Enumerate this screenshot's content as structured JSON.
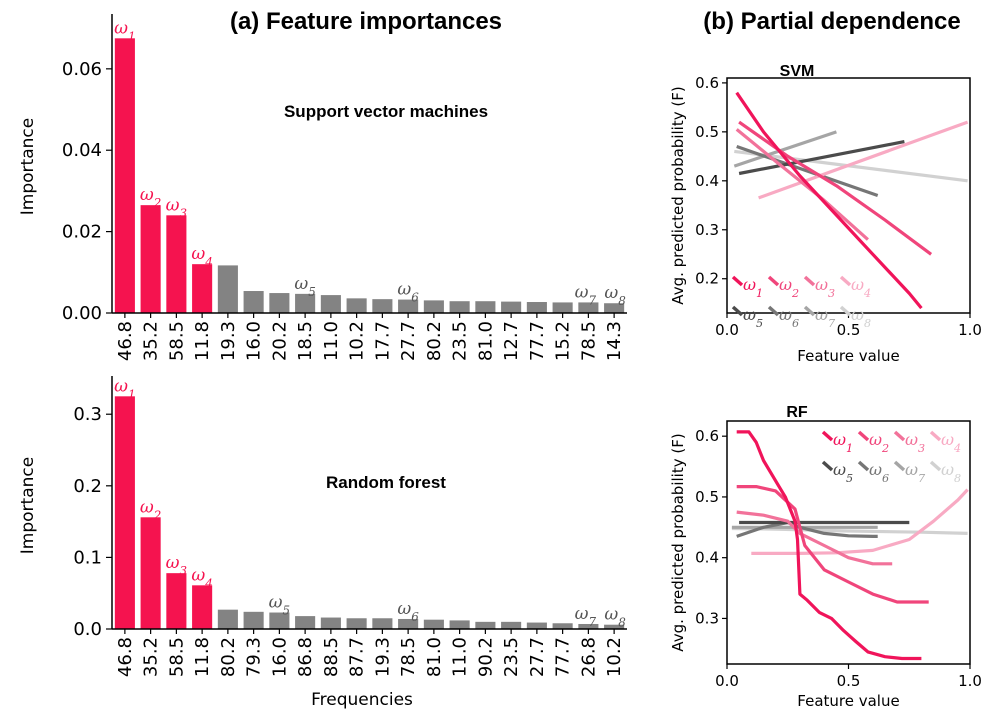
{
  "titles": {
    "left": "(a) Feature importances",
    "right": "(b) Partial dependence"
  },
  "colors": {
    "highlight": "#f5134f",
    "other": "#838383",
    "pd_top": [
      "#f0145a",
      "#f0457b",
      "#f2729a",
      "#f8aac3"
    ],
    "pd_other": [
      "#4b4b4b",
      "#767676",
      "#a5a5a5",
      "#d1d1d1"
    ]
  },
  "chart_data": [
    {
      "type": "bar",
      "panel": "importances-svm",
      "inner_label": "Support vector machines",
      "ylabel": "Importance",
      "xlabel": "",
      "ylim": [
        0,
        0.072
      ],
      "yticks": [
        0.0,
        0.02,
        0.04,
        0.06
      ],
      "ytick_labels": [
        "0.00",
        "0.02",
        "0.04",
        "0.06"
      ],
      "categories": [
        "46.8",
        "35.2",
        "58.5",
        "11.8",
        "19.3",
        "16.0",
        "20.2",
        "18.5",
        "11.0",
        "10.2",
        "17.7",
        "27.7",
        "80.2",
        "23.5",
        "81.0",
        "12.7",
        "77.7",
        "15.2",
        "78.5",
        "14.3"
      ],
      "values": [
        0.0675,
        0.0265,
        0.024,
        0.012,
        0.0117,
        0.0054,
        0.0049,
        0.0047,
        0.0044,
        0.0036,
        0.0034,
        0.0033,
        0.0031,
        0.0029,
        0.0029,
        0.0028,
        0.0027,
        0.0026,
        0.0026,
        0.0024
      ],
      "highlighted": [
        0,
        1,
        2,
        3
      ],
      "annotations": [
        {
          "index": 0,
          "label": "ω",
          "sub": "1",
          "kind": "top"
        },
        {
          "index": 1,
          "label": "ω",
          "sub": "2",
          "kind": "top"
        },
        {
          "index": 2,
          "label": "ω",
          "sub": "3",
          "kind": "top"
        },
        {
          "index": 3,
          "label": "ω",
          "sub": "4",
          "kind": "top"
        },
        {
          "index": 7,
          "label": "ω",
          "sub": "5",
          "kind": "other"
        },
        {
          "index": 11,
          "label": "ω",
          "sub": "6",
          "kind": "other"
        },
        {
          "index": 18,
          "label": "ω",
          "sub": "7",
          "kind": "other"
        },
        {
          "index": 19,
          "label": "ω",
          "sub": "8",
          "kind": "other"
        }
      ]
    },
    {
      "type": "bar",
      "panel": "importances-rf",
      "inner_label": "Random forest",
      "ylabel": "Importance",
      "xlabel": "Frequencies",
      "ylim": [
        0,
        0.345
      ],
      "yticks": [
        0.0,
        0.1,
        0.2,
        0.3
      ],
      "ytick_labels": [
        "0.0",
        "0.1",
        "0.2",
        "0.3"
      ],
      "categories": [
        "46.8",
        "35.2",
        "58.5",
        "11.8",
        "80.2",
        "79.3",
        "16.0",
        "86.8",
        "88.5",
        "87.7",
        "19.3",
        "78.5",
        "81.0",
        "11.0",
        "90.2",
        "23.5",
        "27.7",
        "77.7",
        "26.8",
        "10.2"
      ],
      "values": [
        0.325,
        0.156,
        0.078,
        0.061,
        0.027,
        0.024,
        0.023,
        0.018,
        0.016,
        0.015,
        0.015,
        0.014,
        0.013,
        0.012,
        0.01,
        0.01,
        0.009,
        0.008,
        0.007,
        0.006
      ],
      "highlighted": [
        0,
        1,
        2,
        3
      ],
      "annotations": [
        {
          "index": 0,
          "label": "ω",
          "sub": "1",
          "kind": "top"
        },
        {
          "index": 1,
          "label": "ω",
          "sub": "2",
          "kind": "top"
        },
        {
          "index": 2,
          "label": "ω",
          "sub": "3",
          "kind": "top"
        },
        {
          "index": 3,
          "label": "ω",
          "sub": "4",
          "kind": "top"
        },
        {
          "index": 6,
          "label": "ω",
          "sub": "5",
          "kind": "other"
        },
        {
          "index": 11,
          "label": "ω",
          "sub": "6",
          "kind": "other"
        },
        {
          "index": 18,
          "label": "ω",
          "sub": "7",
          "kind": "other"
        },
        {
          "index": 19,
          "label": "ω",
          "sub": "8",
          "kind": "other"
        }
      ]
    },
    {
      "type": "line",
      "panel": "pd-svm",
      "title": "SVM",
      "xlabel": "Feature value",
      "ylabel": "Avg. predicted probability (F)",
      "xlim": [
        0,
        1.0
      ],
      "ylim": [
        0.13,
        0.61
      ],
      "xticks": [
        0.0,
        0.5,
        1.0
      ],
      "xtick_labels": [
        "0.0",
        "0.5",
        "1.0"
      ],
      "yticks": [
        0.2,
        0.3,
        0.4,
        0.5,
        0.6
      ],
      "ytick_labels": [
        "0.2",
        "0.3",
        "0.4",
        "0.5",
        "0.6"
      ],
      "legend": {
        "rows": [
          [
            "ω1",
            "ω2",
            "ω3",
            "ω4"
          ],
          [
            "ω5",
            "ω6",
            "ω7",
            "ω8"
          ]
        ],
        "labels": [
          {
            "label": "ω",
            "sub": "1"
          },
          {
            "label": "ω",
            "sub": "2"
          },
          {
            "label": "ω",
            "sub": "3"
          },
          {
            "label": "ω",
            "sub": "4"
          },
          {
            "label": "ω",
            "sub": "5"
          },
          {
            "label": "ω",
            "sub": "6"
          },
          {
            "label": "ω",
            "sub": "7"
          },
          {
            "label": "ω",
            "sub": "8"
          }
        ],
        "position": "lower-left"
      },
      "series": [
        {
          "name": "ω8",
          "x": [
            0.03,
            0.99
          ],
          "y": [
            0.46,
            0.4
          ]
        },
        {
          "name": "ω7",
          "x": [
            0.03,
            0.45
          ],
          "y": [
            0.43,
            0.5
          ]
        },
        {
          "name": "ω6",
          "x": [
            0.04,
            0.62
          ],
          "y": [
            0.47,
            0.37
          ]
        },
        {
          "name": "ω5",
          "x": [
            0.05,
            0.73
          ],
          "y": [
            0.415,
            0.48
          ]
        },
        {
          "name": "ω4",
          "x": [
            0.13,
            0.99
          ],
          "y": [
            0.365,
            0.52
          ]
        },
        {
          "name": "ω3",
          "x": [
            0.04,
            0.2,
            0.4,
            0.58
          ],
          "y": [
            0.505,
            0.44,
            0.36,
            0.28
          ]
        },
        {
          "name": "ω2",
          "x": [
            0.05,
            0.25,
            0.45,
            0.65,
            0.84
          ],
          "y": [
            0.52,
            0.45,
            0.39,
            0.32,
            0.25
          ]
        },
        {
          "name": "ω1",
          "x": [
            0.04,
            0.15,
            0.3,
            0.45,
            0.6,
            0.75,
            0.8
          ],
          "y": [
            0.58,
            0.5,
            0.41,
            0.33,
            0.25,
            0.17,
            0.14
          ]
        }
      ]
    },
    {
      "type": "line",
      "panel": "pd-rf",
      "title": "RF",
      "xlabel": "Feature value",
      "ylabel": "Avg. predicted probability (F)",
      "xlim": [
        0,
        1.0
      ],
      "ylim": [
        0.225,
        0.625
      ],
      "xticks": [
        0.0,
        0.5,
        1.0
      ],
      "xtick_labels": [
        "0.0",
        "0.5",
        "1.0"
      ],
      "yticks": [
        0.3,
        0.4,
        0.5,
        0.6
      ],
      "ytick_labels": [
        "0.3",
        "0.4",
        "0.5",
        "0.6"
      ],
      "legend": {
        "rows": [
          [
            "ω1",
            "ω2",
            "ω3",
            "ω4"
          ],
          [
            "ω5",
            "ω6",
            "ω7",
            "ω8"
          ]
        ],
        "labels": [
          {
            "label": "ω",
            "sub": "1"
          },
          {
            "label": "ω",
            "sub": "2"
          },
          {
            "label": "ω",
            "sub": "3"
          },
          {
            "label": "ω",
            "sub": "4"
          },
          {
            "label": "ω",
            "sub": "5"
          },
          {
            "label": "ω",
            "sub": "6"
          },
          {
            "label": "ω",
            "sub": "7"
          },
          {
            "label": "ω",
            "sub": "8"
          }
        ],
        "position": "upper-right"
      },
      "series": [
        {
          "name": "ω8",
          "x": [
            0.02,
            0.2,
            0.5,
            0.8,
            0.99
          ],
          "y": [
            0.448,
            0.447,
            0.444,
            0.442,
            0.44
          ]
        },
        {
          "name": "ω4",
          "x": [
            0.1,
            0.3,
            0.45,
            0.6,
            0.75,
            0.85,
            0.95,
            0.99
          ],
          "y": [
            0.407,
            0.407,
            0.408,
            0.412,
            0.43,
            0.46,
            0.495,
            0.512
          ]
        },
        {
          "name": "ω7",
          "x": [
            0.02,
            0.15,
            0.3,
            0.5,
            0.62
          ],
          "y": [
            0.45,
            0.45,
            0.45,
            0.45,
            0.45
          ]
        },
        {
          "name": "ω6",
          "x": [
            0.04,
            0.15,
            0.25,
            0.3,
            0.4,
            0.5,
            0.6,
            0.62
          ],
          "y": [
            0.435,
            0.45,
            0.458,
            0.45,
            0.44,
            0.436,
            0.435,
            0.435
          ]
        },
        {
          "name": "ω5",
          "x": [
            0.05,
            0.25,
            0.5,
            0.75
          ],
          "y": [
            0.458,
            0.458,
            0.458,
            0.458
          ]
        },
        {
          "name": "ω3",
          "x": [
            0.04,
            0.15,
            0.25,
            0.3,
            0.4,
            0.5,
            0.6,
            0.68
          ],
          "y": [
            0.475,
            0.47,
            0.46,
            0.44,
            0.42,
            0.4,
            0.39,
            0.39
          ]
        },
        {
          "name": "ω2",
          "x": [
            0.04,
            0.12,
            0.2,
            0.28,
            0.32,
            0.4,
            0.5,
            0.6,
            0.7,
            0.83
          ],
          "y": [
            0.517,
            0.517,
            0.51,
            0.48,
            0.42,
            0.38,
            0.36,
            0.34,
            0.327,
            0.327
          ]
        },
        {
          "name": "ω1",
          "x": [
            0.04,
            0.09,
            0.12,
            0.15,
            0.18,
            0.21,
            0.24,
            0.26,
            0.28,
            0.29,
            0.3,
            0.33,
            0.38,
            0.43,
            0.48,
            0.53,
            0.58,
            0.65,
            0.72,
            0.8
          ],
          "y": [
            0.607,
            0.607,
            0.59,
            0.56,
            0.54,
            0.52,
            0.5,
            0.48,
            0.46,
            0.43,
            0.34,
            0.33,
            0.31,
            0.3,
            0.28,
            0.262,
            0.245,
            0.237,
            0.234,
            0.234
          ]
        }
      ]
    }
  ]
}
